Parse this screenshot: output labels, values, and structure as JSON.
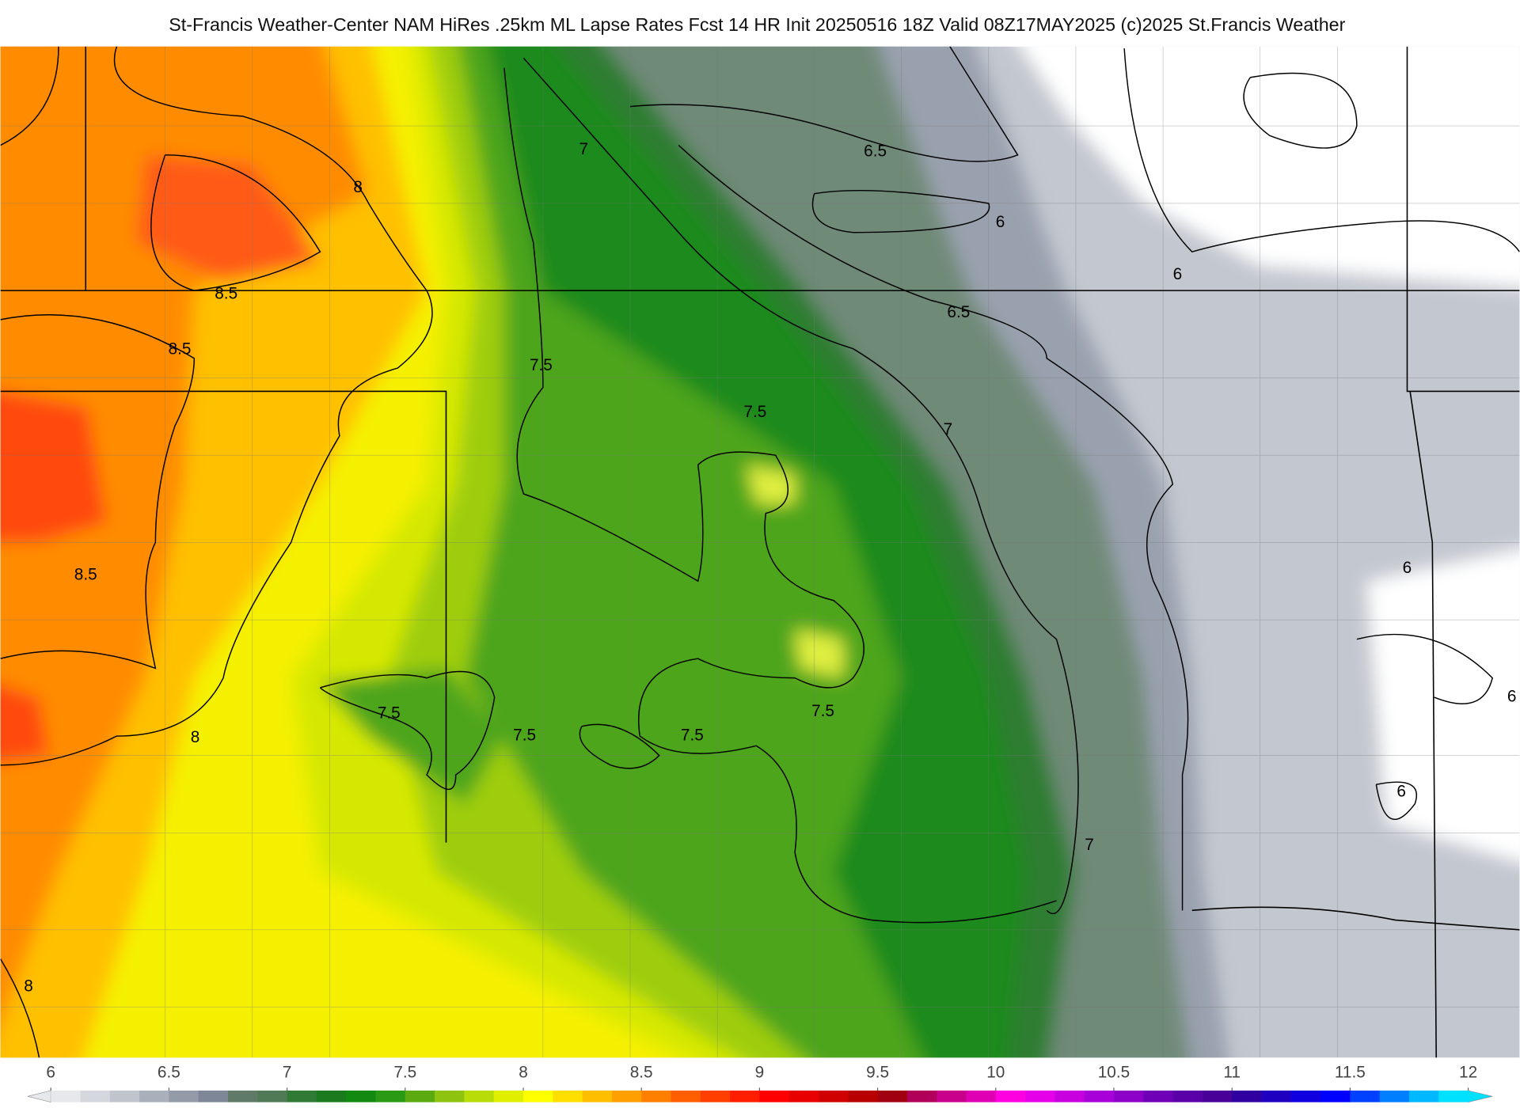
{
  "header": {
    "title": "St-Francis Weather-Center NAM HiRes .25km ML Lapse Rates  Fcst 14 HR Init 20250516 18Z  Valid 08Z17MAY2025    (c)2025 St.Francis Weather"
  },
  "map": {
    "contour_labels": [
      7,
      6.5,
      6,
      6,
      6.5,
      8,
      8.5,
      8.5,
      7.5,
      7.5,
      7,
      8.5,
      6,
      8,
      7.5,
      7.5,
      7.5,
      7.5,
      6,
      7,
      8,
      6
    ]
  },
  "colorbar": {
    "lim": [
      6,
      12
    ],
    "ticks": [
      6,
      6.5,
      7,
      7.5,
      8,
      8.5,
      9,
      9.5,
      10,
      10.5,
      11,
      11.5,
      12
    ],
    "colors": [
      "#e6e8ec",
      "#d4d7de",
      "#c0c4cc",
      "#aab0bb",
      "#939aa8",
      "#7d8797",
      "#5f7a66",
      "#4f7a55",
      "#2f7a35",
      "#1a7a1e",
      "#128a12",
      "#2a9a15",
      "#5aaa10",
      "#8ec410",
      "#b8dc08",
      "#e0ef00",
      "#ffff00",
      "#ffdf00",
      "#ffbf00",
      "#ff9f00",
      "#ff7f00",
      "#ff5f00",
      "#ff3f00",
      "#ff1f00",
      "#ff0000",
      "#e80000",
      "#d00000",
      "#b80000",
      "#a00010",
      "#b0005a",
      "#c8008c",
      "#e000b4",
      "#ff00e0",
      "#e400e8",
      "#c800e0",
      "#a800d8",
      "#8c00c8",
      "#7000b8",
      "#5a00a8",
      "#480098",
      "#3000a0",
      "#2000c0",
      "#1000e0",
      "#0000ff",
      "#0040ff",
      "#0080ff",
      "#00b8ff",
      "#00e0ff"
    ]
  }
}
